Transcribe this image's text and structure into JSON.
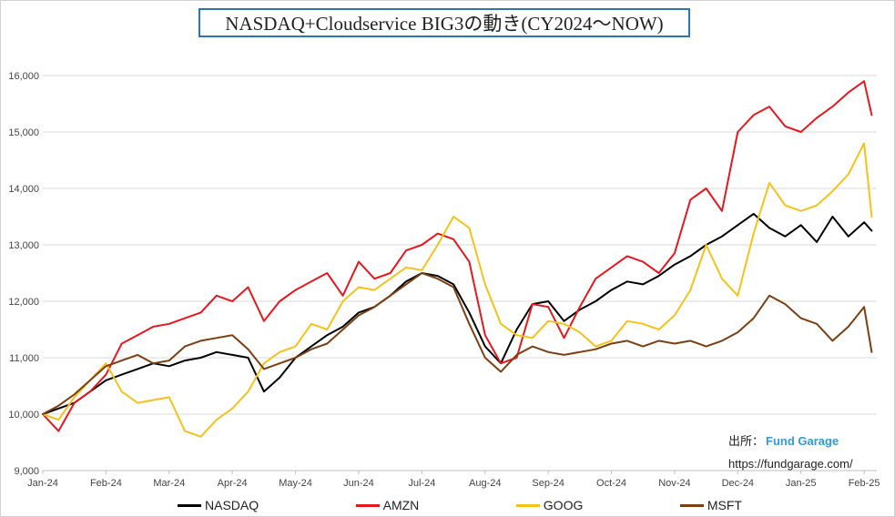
{
  "title": "NASDAQ+Cloudservice BIG3の動き(CY2024～NOW)",
  "source": {
    "label": "出所：",
    "brand": "Fund Garage",
    "url": "https://fundgarage.com/"
  },
  "legend": [
    {
      "name": "NASDAQ",
      "color": "#000000"
    },
    {
      "name": "AMZN",
      "color": "#e8171e"
    },
    {
      "name": "GOOG",
      "color": "#f5c21a"
    },
    {
      "name": "MSFT",
      "color": "#7b3f12"
    }
  ],
  "chart_data": {
    "type": "line",
    "title": "NASDAQ+Cloudservice BIG3の動き(CY2024～NOW)",
    "xlabel": "",
    "ylabel": "",
    "ylim": [
      9000,
      16500
    ],
    "yticks": [
      9000,
      10000,
      11000,
      12000,
      13000,
      14000,
      15000,
      16000
    ],
    "ytick_labels": [
      "9,000",
      "10,000",
      "11,000",
      "12,000",
      "13,000",
      "14,000",
      "15,000",
      "16,000"
    ],
    "xlim": [
      0,
      13.2
    ],
    "xtick_labels": [
      "Jan-24",
      "Feb-24",
      "Mar-24",
      "Apr-24",
      "May-24",
      "Jun-24",
      "Jul-24",
      "Aug-24",
      "Sep-24",
      "Oct-24",
      "Nov-24",
      "Dec-24",
      "Jan-25",
      "Feb-25"
    ],
    "grid": true,
    "legend_position": "bottom",
    "series": [
      {
        "name": "NASDAQ",
        "color": "#000000",
        "x": [
          0,
          0.25,
          0.5,
          0.75,
          1.0,
          1.25,
          1.5,
          1.75,
          2.0,
          2.25,
          2.5,
          2.75,
          3.0,
          3.25,
          3.5,
          3.75,
          4.0,
          4.25,
          4.5,
          4.75,
          5.0,
          5.25,
          5.5,
          5.75,
          6.0,
          6.25,
          6.5,
          6.75,
          7.0,
          7.25,
          7.5,
          7.75,
          8.0,
          8.25,
          8.5,
          8.75,
          9.0,
          9.25,
          9.5,
          9.75,
          10.0,
          10.25,
          10.5,
          10.75,
          11.0,
          11.25,
          11.5,
          11.75,
          12.0,
          12.25,
          12.5,
          12.75,
          13.0,
          13.12
        ],
        "values": [
          10000,
          10100,
          10200,
          10400,
          10600,
          10700,
          10800,
          10900,
          10850,
          10950,
          11000,
          11100,
          11050,
          11000,
          10400,
          10650,
          11000,
          11200,
          11400,
          11550,
          11800,
          11900,
          12100,
          12350,
          12500,
          12450,
          12300,
          11800,
          11200,
          10900,
          11500,
          11950,
          12000,
          11650,
          11850,
          12000,
          12200,
          12350,
          12300,
          12450,
          12650,
          12800,
          13000,
          13150,
          13350,
          13550,
          13300,
          13150,
          13350,
          13050,
          13500,
          13150,
          13400,
          13250
        ]
      },
      {
        "name": "AMZN",
        "color": "#e8171e",
        "x": [
          0,
          0.25,
          0.5,
          0.75,
          1.0,
          1.25,
          1.5,
          1.75,
          2.0,
          2.25,
          2.5,
          2.75,
          3.0,
          3.25,
          3.5,
          3.75,
          4.0,
          4.25,
          4.5,
          4.75,
          5.0,
          5.25,
          5.5,
          5.75,
          6.0,
          6.25,
          6.5,
          6.75,
          7.0,
          7.25,
          7.5,
          7.75,
          8.0,
          8.25,
          8.5,
          8.75,
          9.0,
          9.25,
          9.5,
          9.75,
          10.0,
          10.25,
          10.5,
          10.75,
          11.0,
          11.25,
          11.5,
          11.75,
          12.0,
          12.25,
          12.5,
          12.75,
          13.0,
          13.12
        ],
        "values": [
          10000,
          9700,
          10200,
          10400,
          10700,
          11250,
          11400,
          11550,
          11600,
          11700,
          11800,
          12100,
          12000,
          12250,
          11650,
          12000,
          12200,
          12350,
          12500,
          12100,
          12700,
          12400,
          12500,
          12900,
          13000,
          13200,
          13100,
          12700,
          11400,
          10900,
          11000,
          11950,
          11900,
          11350,
          11900,
          12400,
          12600,
          12800,
          12700,
          12500,
          12850,
          13800,
          14000,
          13600,
          15000,
          15300,
          15450,
          15100,
          15000,
          15250,
          15450,
          15700,
          15900,
          15300
        ]
      },
      {
        "name": "GOOG",
        "color": "#f5c21a",
        "x": [
          0,
          0.25,
          0.5,
          0.75,
          1.0,
          1.25,
          1.5,
          1.75,
          2.0,
          2.25,
          2.5,
          2.75,
          3.0,
          3.25,
          3.5,
          3.75,
          4.0,
          4.25,
          4.5,
          4.75,
          5.0,
          5.25,
          5.5,
          5.75,
          6.0,
          6.25,
          6.5,
          6.75,
          7.0,
          7.25,
          7.5,
          7.75,
          8.0,
          8.25,
          8.5,
          8.75,
          9.0,
          9.25,
          9.5,
          9.75,
          10.0,
          10.25,
          10.5,
          10.75,
          11.0,
          11.25,
          11.5,
          11.75,
          12.0,
          12.25,
          12.5,
          12.75,
          13.0,
          13.12
        ],
        "values": [
          10000,
          9900,
          10300,
          10600,
          10900,
          10400,
          10200,
          10250,
          10300,
          9700,
          9600,
          9900,
          10100,
          10400,
          10900,
          11100,
          11200,
          11600,
          11500,
          12000,
          12250,
          12200,
          12400,
          12600,
          12550,
          13000,
          13500,
          13300,
          12300,
          11600,
          11400,
          11350,
          11650,
          11600,
          11450,
          11200,
          11300,
          11650,
          11600,
          11500,
          11750,
          12200,
          13000,
          12400,
          12100,
          13200,
          14100,
          13700,
          13600,
          13700,
          13950,
          14250,
          14800,
          13500
        ]
      },
      {
        "name": "MSFT",
        "color": "#7b3f12",
        "x": [
          0,
          0.25,
          0.5,
          0.75,
          1.0,
          1.25,
          1.5,
          1.75,
          2.0,
          2.25,
          2.5,
          2.75,
          3.0,
          3.25,
          3.5,
          3.75,
          4.0,
          4.25,
          4.5,
          4.75,
          5.0,
          5.25,
          5.5,
          5.75,
          6.0,
          6.25,
          6.5,
          6.75,
          7.0,
          7.25,
          7.5,
          7.75,
          8.0,
          8.25,
          8.5,
          8.75,
          9.0,
          9.25,
          9.5,
          9.75,
          10.0,
          10.25,
          10.5,
          10.75,
          11.0,
          11.25,
          11.5,
          11.75,
          12.0,
          12.25,
          12.5,
          12.75,
          13.0,
          13.12
        ],
        "values": [
          10000,
          10150,
          10350,
          10600,
          10850,
          10950,
          11050,
          10900,
          10950,
          11200,
          11300,
          11350,
          11400,
          11150,
          10800,
          10900,
          11000,
          11150,
          11250,
          11500,
          11750,
          11900,
          12100,
          12300,
          12500,
          12400,
          12250,
          11600,
          11000,
          10750,
          11050,
          11200,
          11100,
          11050,
          11100,
          11150,
          11250,
          11300,
          11200,
          11300,
          11250,
          11300,
          11200,
          11300,
          11450,
          11700,
          12100,
          11950,
          11700,
          11600,
          11300,
          11550,
          11900,
          11100
        ]
      }
    ]
  }
}
